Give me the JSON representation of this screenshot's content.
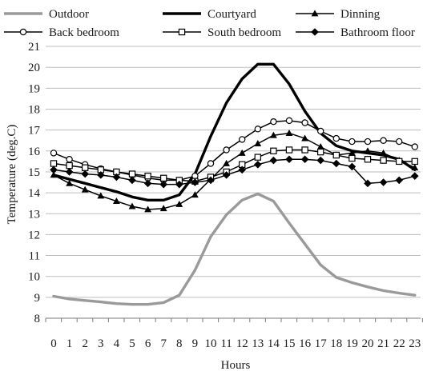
{
  "chart_data": {
    "type": "line",
    "title": "",
    "xlabel": "Hours",
    "ylabel": "Temperature (deg.C)",
    "ylim": [
      8,
      21
    ],
    "yticks": [
      8,
      9,
      10,
      11,
      12,
      13,
      14,
      15,
      16,
      17,
      18,
      19,
      20,
      21
    ],
    "x": [
      0,
      1,
      2,
      3,
      4,
      5,
      6,
      7,
      8,
      9,
      10,
      11,
      12,
      13,
      14,
      15,
      16,
      17,
      18,
      19,
      20,
      21,
      22,
      23
    ],
    "grid": "horizontal",
    "legend_position": "top",
    "series": [
      {
        "name": "Outdoor",
        "color": "#9a9a9a",
        "marker": "none",
        "line": "thick",
        "values": [
          9.05,
          8.92,
          8.85,
          8.78,
          8.7,
          8.66,
          8.66,
          8.75,
          9.1,
          10.3,
          11.9,
          12.95,
          13.65,
          13.95,
          13.6,
          12.55,
          11.55,
          10.55,
          9.95,
          9.7,
          9.5,
          9.32,
          9.2,
          9.1
        ]
      },
      {
        "name": "Courtyard",
        "color": "#000000",
        "marker": "none",
        "line": "thick",
        "values": [
          14.85,
          14.65,
          14.45,
          14.25,
          14.05,
          13.8,
          13.65,
          13.65,
          13.9,
          14.9,
          16.7,
          18.3,
          19.45,
          20.15,
          20.15,
          19.2,
          17.9,
          16.85,
          16.25,
          16.0,
          15.9,
          15.8,
          15.6,
          15.1
        ]
      },
      {
        "name": "Dinning",
        "color": "#000000",
        "marker": "triangle",
        "line": "thin",
        "values": [
          14.85,
          14.45,
          14.15,
          13.85,
          13.6,
          13.35,
          13.2,
          13.25,
          13.45,
          13.9,
          14.65,
          15.4,
          15.9,
          16.35,
          16.75,
          16.85,
          16.6,
          16.2,
          15.8,
          15.9,
          16.0,
          15.9,
          15.55,
          15.2
        ]
      },
      {
        "name": "Back bedroom",
        "color": "#000000",
        "marker": "circle",
        "line": "thin",
        "values": [
          15.9,
          15.6,
          15.35,
          15.15,
          15.0,
          14.85,
          14.7,
          14.6,
          14.6,
          14.8,
          15.4,
          16.05,
          16.55,
          17.05,
          17.4,
          17.45,
          17.35,
          16.95,
          16.6,
          16.45,
          16.45,
          16.5,
          16.45,
          16.2
        ]
      },
      {
        "name": "South bedroom",
        "color": "#000000",
        "marker": "square",
        "line": "thin",
        "values": [
          15.4,
          15.3,
          15.2,
          15.1,
          15.0,
          14.9,
          14.8,
          14.7,
          14.6,
          14.55,
          14.75,
          15.0,
          15.35,
          15.7,
          16.0,
          16.05,
          16.05,
          15.95,
          15.8,
          15.65,
          15.6,
          15.55,
          15.5,
          15.5
        ]
      },
      {
        "name": "Bathroom floor",
        "color": "#000000",
        "marker": "diamond",
        "line": "thin",
        "values": [
          15.1,
          15.0,
          14.9,
          14.85,
          14.75,
          14.6,
          14.45,
          14.4,
          14.4,
          14.5,
          14.6,
          14.85,
          15.1,
          15.35,
          15.55,
          15.6,
          15.6,
          15.55,
          15.4,
          15.25,
          14.45,
          14.5,
          14.6,
          14.8
        ]
      }
    ]
  }
}
